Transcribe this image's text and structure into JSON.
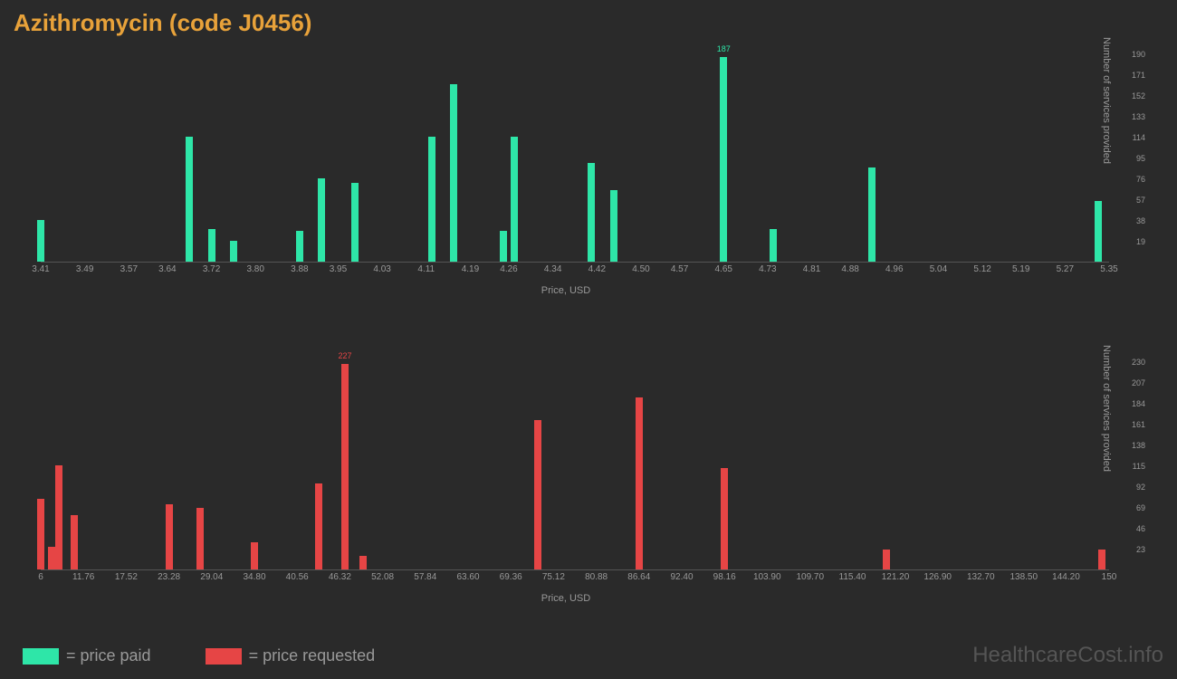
{
  "title": "Azithromycin (code J0456)",
  "title_color": "#e8a23a",
  "background_color": "#2a2a2a",
  "watermark": "HealthcareCost.info",
  "legend": {
    "items": [
      {
        "label": "= price paid",
        "color": "#2ee6a8"
      },
      {
        "label": "= price requested",
        "color": "#e64545"
      }
    ]
  },
  "chart_top": {
    "type": "bar",
    "bar_color": "#2ee6a8",
    "xlabel": "Price, USD",
    "ylabel": "Number of services provided",
    "x_min": 3.41,
    "x_max": 5.35,
    "y_max": 190,
    "x_ticks": [
      3.41,
      3.49,
      3.57,
      3.64,
      3.72,
      3.8,
      3.88,
      3.95,
      4.03,
      4.11,
      4.19,
      4.26,
      4.34,
      4.42,
      4.5,
      4.57,
      4.65,
      4.73,
      4.81,
      4.88,
      4.96,
      5.04,
      5.12,
      5.19,
      5.27,
      5.35
    ],
    "y_ticks": [
      19,
      38,
      57,
      76,
      95,
      114,
      133,
      152,
      171,
      190
    ],
    "bars": [
      {
        "x": 3.41,
        "y": 38
      },
      {
        "x": 3.68,
        "y": 114
      },
      {
        "x": 3.72,
        "y": 30
      },
      {
        "x": 3.76,
        "y": 19
      },
      {
        "x": 3.88,
        "y": 28
      },
      {
        "x": 3.92,
        "y": 76
      },
      {
        "x": 3.98,
        "y": 72
      },
      {
        "x": 4.12,
        "y": 114
      },
      {
        "x": 4.16,
        "y": 162
      },
      {
        "x": 4.25,
        "y": 28
      },
      {
        "x": 4.27,
        "y": 114
      },
      {
        "x": 4.41,
        "y": 90
      },
      {
        "x": 4.45,
        "y": 65
      },
      {
        "x": 4.65,
        "y": 187,
        "label": "187"
      },
      {
        "x": 4.74,
        "y": 30
      },
      {
        "x": 4.92,
        "y": 86
      },
      {
        "x": 5.33,
        "y": 55
      }
    ]
  },
  "chart_bottom": {
    "type": "bar",
    "bar_color": "#e64545",
    "xlabel": "Price, USD",
    "ylabel": "Number of services provided",
    "x_min": 6,
    "x_max": 150,
    "y_max": 230,
    "x_ticks": [
      6,
      11.76,
      17.52,
      23.28,
      29.04,
      34.8,
      40.56,
      46.32,
      52.08,
      57.84,
      63.6,
      69.36,
      75.12,
      80.88,
      86.64,
      92.4,
      98.16,
      103.9,
      109.7,
      115.4,
      121.2,
      126.9,
      132.7,
      138.5,
      144.2,
      150
    ],
    "y_ticks": [
      23,
      46,
      69,
      92,
      115,
      138,
      161,
      184,
      207,
      230
    ],
    "bars": [
      {
        "x": 6,
        "y": 78
      },
      {
        "x": 7.5,
        "y": 25
      },
      {
        "x": 8.5,
        "y": 115
      },
      {
        "x": 10.5,
        "y": 60
      },
      {
        "x": 23.28,
        "y": 72
      },
      {
        "x": 27.5,
        "y": 68
      },
      {
        "x": 34.8,
        "y": 30
      },
      {
        "x": 43.5,
        "y": 95
      },
      {
        "x": 47.0,
        "y": 227,
        "label": "227"
      },
      {
        "x": 49.5,
        "y": 15
      },
      {
        "x": 73.0,
        "y": 165
      },
      {
        "x": 86.64,
        "y": 190
      },
      {
        "x": 98.16,
        "y": 112
      },
      {
        "x": 120.0,
        "y": 22
      },
      {
        "x": 149.0,
        "y": 22
      }
    ]
  }
}
